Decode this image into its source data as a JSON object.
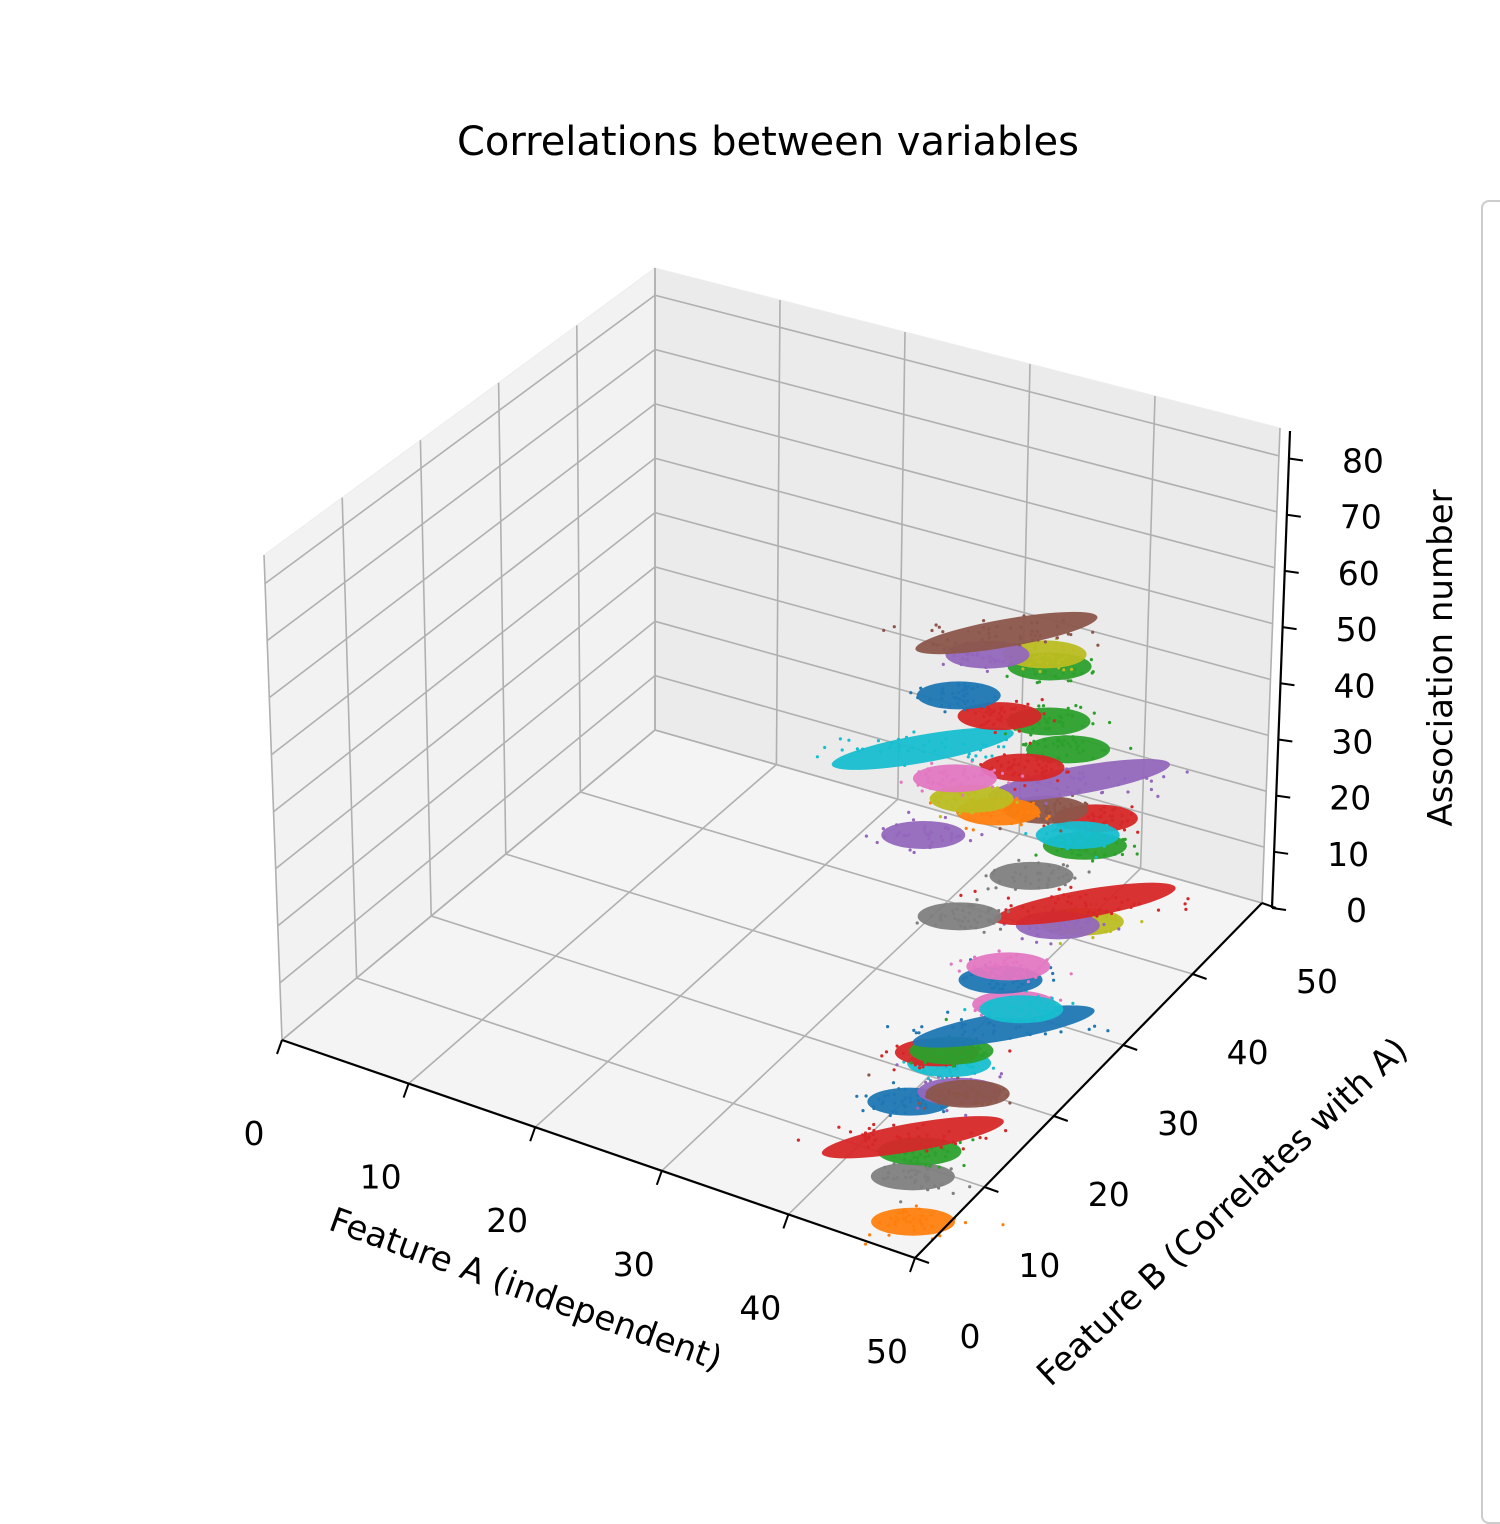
{
  "chart_data": {
    "type": "scatter",
    "projection": "3d",
    "title": "Correlations between variables",
    "xlabel": "Feature A (independent)",
    "ylabel": "Feature B (Correlates with A)",
    "zlabel": "Association number",
    "xlim": [
      0,
      50
    ],
    "ylim": [
      0,
      50
    ],
    "zlim": [
      0,
      85
    ],
    "xticks": [
      "0",
      "10",
      "20",
      "30",
      "40",
      "50"
    ],
    "yticks": [
      "0",
      "10",
      "20",
      "30",
      "40",
      "50"
    ],
    "zticks": [
      "0",
      "10",
      "20",
      "30",
      "40",
      "50",
      "60",
      "70",
      "80"
    ],
    "grid": true,
    "legend": "right (clipped)",
    "palette": [
      "#1f77b4",
      "#ff7f0e",
      "#2ca02c",
      "#d62728",
      "#9467bd",
      "#8c564b",
      "#e377c2",
      "#7f7f7f",
      "#bcbd22",
      "#17becf"
    ],
    "series": [
      {
        "color": "#ff7f0e",
        "values": [
          [
            48.5,
            2.5,
            2
          ]
        ]
      },
      {
        "color": "#7f7f7f",
        "values": [
          [
            48.0,
            3.5,
            8
          ]
        ]
      },
      {
        "color": "#2ca02c",
        "values": [
          [
            48.0,
            4.5,
            11
          ]
        ]
      },
      {
        "color": "#d62728",
        "values": [
          [
            47.5,
            4.5,
            13
          ]
        ]
      },
      {
        "color": "#1f77b4",
        "values": [
          [
            47.0,
            5.0,
            18
          ]
        ]
      },
      {
        "color": "#9467bd",
        "values": [
          [
            49.0,
            8.5,
            17
          ]
        ]
      },
      {
        "color": "#8c564b",
        "values": [
          [
            48.5,
            10.5,
            14
          ]
        ]
      },
      {
        "color": "#17becf",
        "values": [
          [
            48.5,
            8.0,
            22
          ]
        ]
      },
      {
        "color": "#d62728",
        "values": [
          [
            49.0,
            5.5,
            27
          ]
        ]
      },
      {
        "color": "#2ca02c",
        "values": [
          [
            49.0,
            7.5,
            25
          ]
        ]
      },
      {
        "color": "#1f77b4",
        "values": [
          [
            48.0,
            16.5,
            18
          ]
        ]
      },
      {
        "color": "#e377c2",
        "values": [
          [
            48.0,
            18.0,
            20
          ]
        ]
      },
      {
        "color": "#17becf",
        "values": [
          [
            48.0,
            19.0,
            18
          ]
        ]
      },
      {
        "color": "#1f77b4",
        "values": [
          [
            47.5,
            17.0,
            25
          ]
        ]
      },
      {
        "color": "#e377c2",
        "values": [
          [
            49.0,
            15.5,
            30
          ]
        ]
      },
      {
        "color": "#bcbd22",
        "values": [
          [
            48.0,
            27.5,
            23
          ]
        ]
      },
      {
        "color": "#9467bd",
        "values": [
          [
            47.5,
            25.0,
            25
          ]
        ]
      },
      {
        "color": "#d62728",
        "values": [
          [
            48.5,
            27.0,
            27
          ]
        ]
      },
      {
        "color": "#7f7f7f",
        "values": [
          [
            48.0,
            20.5,
            39
          ]
        ]
      },
      {
        "color": "#2ca02c",
        "values": [
          [
            48.5,
            27.0,
            37
          ]
        ]
      },
      {
        "color": "#d62728",
        "values": [
          [
            48.5,
            28.5,
            40
          ]
        ]
      },
      {
        "color": "#17becf",
        "values": [
          [
            48.5,
            26.0,
            40
          ]
        ]
      },
      {
        "color": "#7f7f7f",
        "values": [
          [
            47.5,
            11.5,
            42
          ]
        ]
      },
      {
        "color": "#8c564b",
        "values": [
          [
            48.0,
            22.5,
            48
          ]
        ]
      },
      {
        "color": "#9467bd",
        "values": [
          [
            48.0,
            27.0,
            48
          ]
        ]
      },
      {
        "color": "#ff7f0e",
        "values": [
          [
            48.0,
            16.0,
            55
          ]
        ]
      },
      {
        "color": "#2ca02c",
        "values": [
          [
            48.0,
            25.5,
            55
          ]
        ]
      },
      {
        "color": "#bcbd22",
        "values": [
          [
            48.0,
            12.5,
            61
          ]
        ]
      },
      {
        "color": "#9467bd",
        "values": [
          [
            48.0,
            6.0,
            62
          ]
        ]
      },
      {
        "color": "#d62728",
        "values": [
          [
            48.5,
            18.5,
            60
          ]
        ]
      },
      {
        "color": "#e377c2",
        "values": [
          [
            48.5,
            9.5,
            68
          ]
        ]
      },
      {
        "color": "#17becf",
        "values": [
          [
            47.5,
            7.0,
            75
          ]
        ]
      },
      {
        "color": "#2ca02c",
        "values": [
          [
            48.5,
            22.0,
            64
          ]
        ]
      },
      {
        "color": "#d62728",
        "values": [
          [
            48.5,
            15.5,
            72
          ]
        ]
      },
      {
        "color": "#2ca02c",
        "values": [
          [
            48.0,
            23.0,
            72
          ]
        ]
      },
      {
        "color": "#bcbd22",
        "values": [
          [
            48.5,
            21.5,
            76
          ]
        ]
      },
      {
        "color": "#1f77b4",
        "values": [
          [
            48.0,
            11.0,
            80
          ]
        ]
      },
      {
        "color": "#9467bd",
        "values": [
          [
            48.5,
            14.0,
            84
          ]
        ]
      },
      {
        "color": "#8c564b",
        "values": [
          [
            48.5,
            16.5,
            85
          ]
        ]
      }
    ]
  }
}
